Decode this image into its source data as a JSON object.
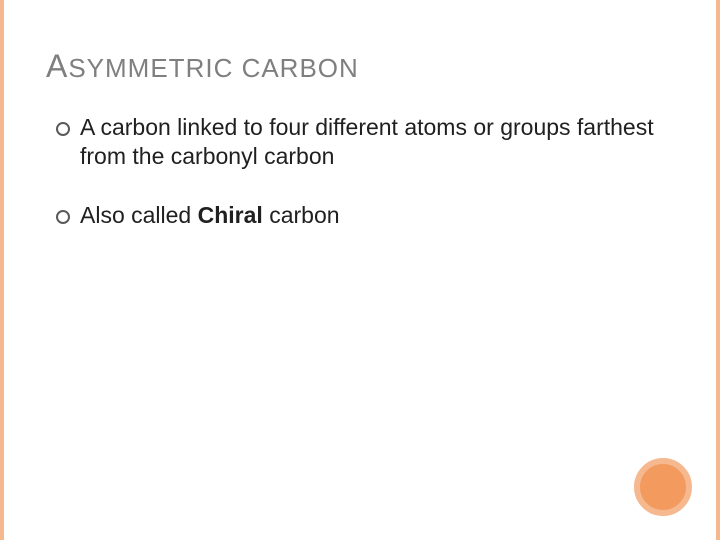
{
  "slide": {
    "title_first": "A",
    "title_rest": "SYMMETRIC CARBON",
    "bullets": [
      {
        "text_before": "A carbon linked to four different atoms or groups farthest from the carbonyl carbon",
        "bold": "",
        "text_after": ""
      },
      {
        "text_before": "Also called ",
        "bold": "Chiral",
        "text_after": " carbon"
      }
    ]
  },
  "style": {
    "accent_color": "#f6b88f",
    "circle_fill": "#f39b5f",
    "title_color": "#7f7f7f",
    "text_color": "#202020",
    "background": "#ffffff",
    "title_fontsize": 26,
    "body_fontsize": 23
  }
}
